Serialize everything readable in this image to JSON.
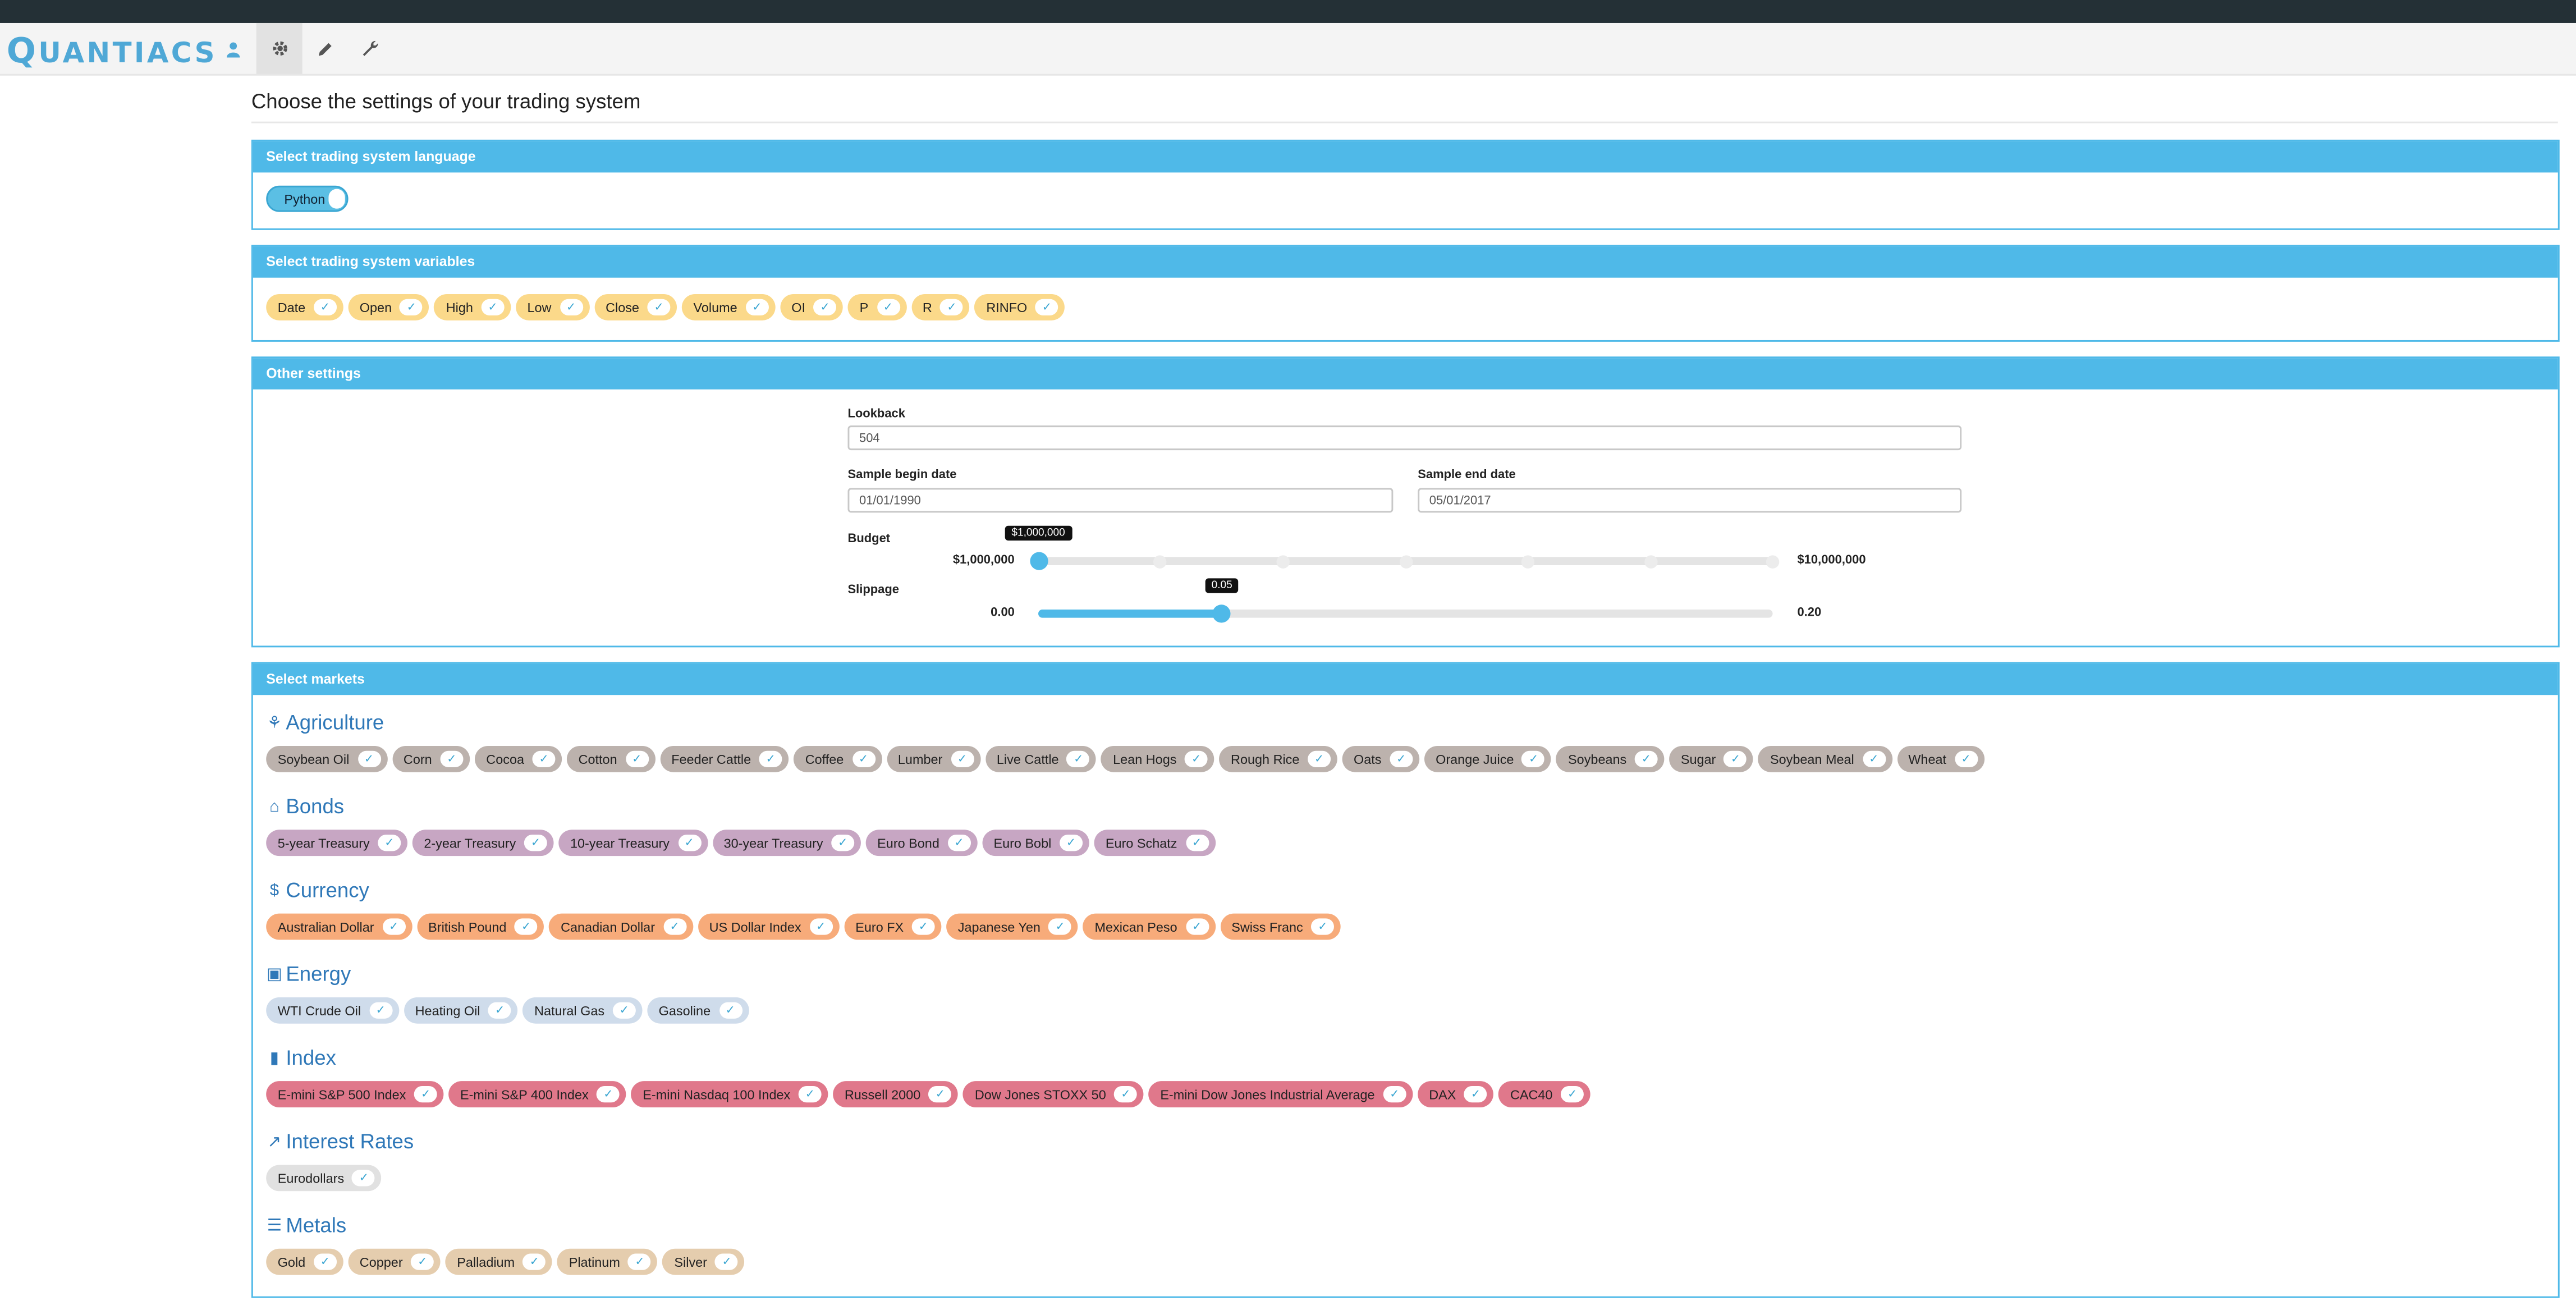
{
  "app": {
    "brand_big": "Q",
    "brand_rest": "UANTIACS",
    "nav_icons": [
      "user-icon",
      "gear-icon",
      "pencil-icon",
      "wrench-icon"
    ]
  },
  "colors": {
    "accent": "#4fb9e8",
    "header_dark": "#243036",
    "category_title": "#2f78b8"
  },
  "page_title": "Choose the settings of your trading system",
  "language_panel": {
    "title": "Select trading system language",
    "toggle_label": "Python"
  },
  "variables_panel": {
    "title": "Select trading system variables",
    "items": [
      "Date",
      "Open",
      "High",
      "Low",
      "Close",
      "Volume",
      "OI",
      "P",
      "R",
      "RINFO"
    ]
  },
  "other_panel": {
    "title": "Other settings",
    "lookback": {
      "label": "Lookback",
      "value": "504"
    },
    "begin": {
      "label": "Sample begin date",
      "value": "01/01/1990"
    },
    "end": {
      "label": "Sample end date",
      "value": "05/01/2017"
    },
    "budget": {
      "label": "Budget",
      "min_label": "$1,000,000",
      "max_label": "$10,000,000",
      "value_label": "$1,000,000",
      "value_fraction": 0.0,
      "steps": 7
    },
    "slippage": {
      "label": "Slippage",
      "min_label": "0.00",
      "max_label": "0.20",
      "value_label": "0.05",
      "value_fraction": 0.25
    }
  },
  "markets_panel": {
    "title": "Select markets",
    "categories": [
      {
        "name": "Agriculture",
        "icon": "sprout-icon",
        "glyph": "⚘",
        "color": "ag",
        "items": [
          "Soybean Oil",
          "Corn",
          "Cocoa",
          "Cotton",
          "Feeder Cattle",
          "Coffee",
          "Lumber",
          "Live Cattle",
          "Lean Hogs",
          "Rough Rice",
          "Oats",
          "Orange Juice",
          "Soybeans",
          "Sugar",
          "Soybean Meal",
          "Wheat"
        ]
      },
      {
        "name": "Bonds",
        "icon": "bank-icon",
        "glyph": "⌂",
        "color": "bd",
        "items": [
          "5-year Treasury",
          "2-year Treasury",
          "10-year Treasury",
          "30-year Treasury",
          "Euro Bond",
          "Euro Bobl",
          "Euro Schatz"
        ]
      },
      {
        "name": "Currency",
        "icon": "dollar-icon",
        "glyph": "$",
        "color": "cu",
        "items": [
          "Australian Dollar",
          "British Pound",
          "Canadian Dollar",
          "US Dollar Index",
          "Euro FX",
          "Japanese Yen",
          "Mexican Peso",
          "Swiss Franc"
        ]
      },
      {
        "name": "Energy",
        "icon": "fuel-pump-icon",
        "glyph": "▣",
        "color": "en",
        "items": [
          "WTI Crude Oil",
          "Heating Oil",
          "Natural Gas",
          "Gasoline"
        ]
      },
      {
        "name": "Index",
        "icon": "bar-chart-icon",
        "glyph": "▮",
        "color": "ix",
        "items": [
          "E-mini S&P 500 Index",
          "E-mini S&P 400 Index",
          "E-mini Nasdaq 100 Index",
          "Russell 2000",
          "Dow Jones STOXX 50",
          "E-mini Dow Jones Industrial Average",
          "DAX",
          "CAC40"
        ]
      },
      {
        "name": "Interest Rates",
        "icon": "trend-line-icon",
        "glyph": "↗",
        "color": "ir",
        "items": [
          "Eurodollars"
        ]
      },
      {
        "name": "Metals",
        "icon": "metal-bars-icon",
        "glyph": "☰",
        "color": "mt",
        "items": [
          "Gold",
          "Copper",
          "Palladium",
          "Platinum",
          "Silver"
        ]
      }
    ]
  }
}
